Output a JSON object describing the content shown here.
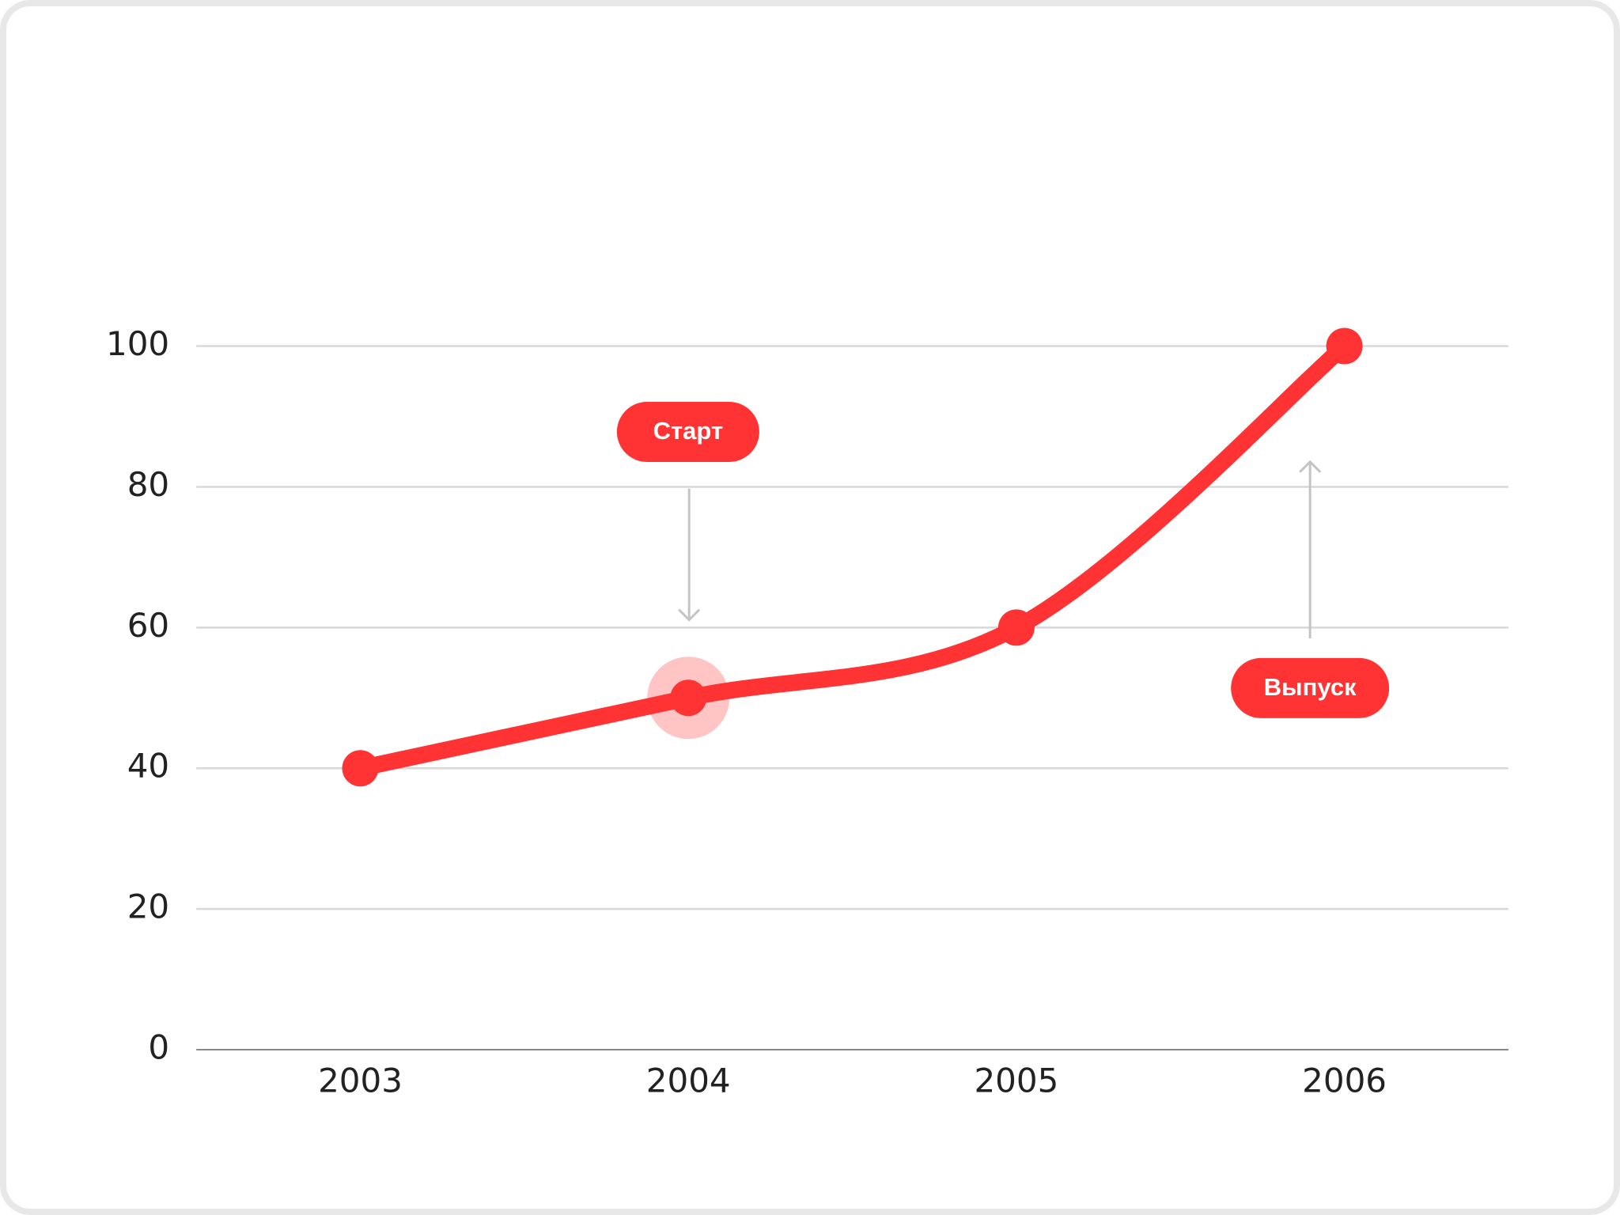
{
  "chart_data": {
    "type": "line",
    "categories": [
      "2003",
      "2004",
      "2005",
      "2006"
    ],
    "values": [
      40,
      50,
      60,
      100
    ],
    "color": "#ff3333",
    "ylim": [
      0,
      100
    ],
    "yticks": [
      0,
      20,
      40,
      60,
      80,
      100
    ],
    "grid": true,
    "annotations": [
      "Старт",
      "Выпуск"
    ]
  }
}
